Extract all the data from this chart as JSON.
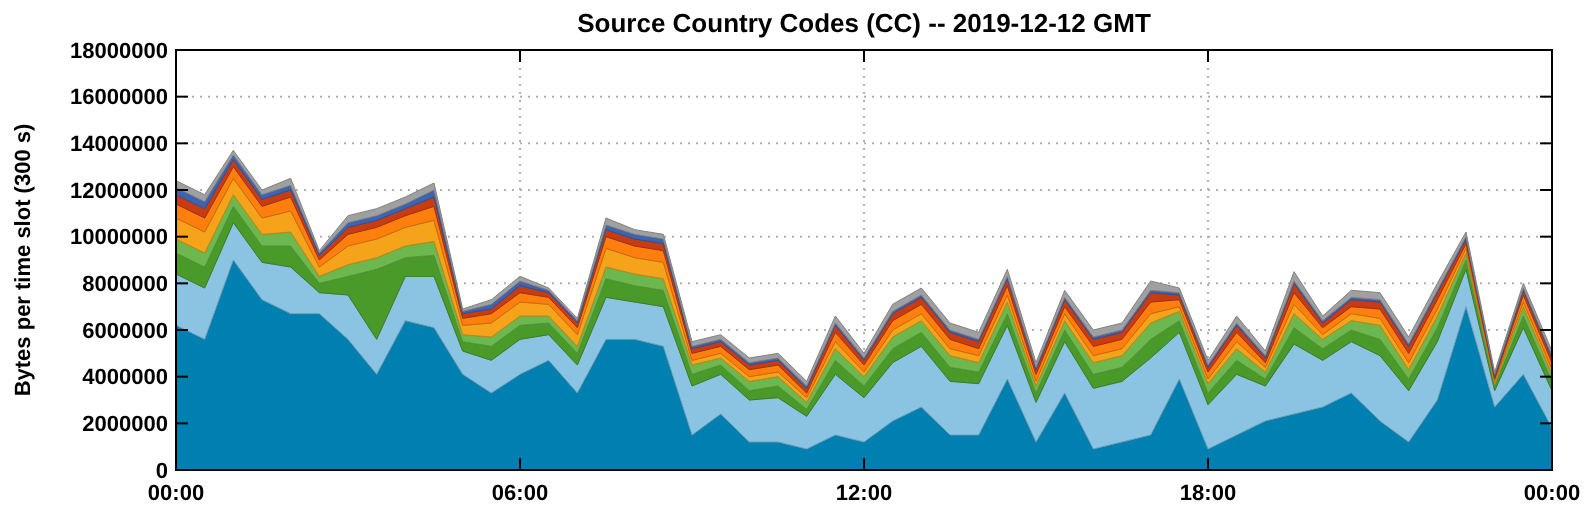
{
  "chart_data": {
    "type": "area",
    "stacked": true,
    "title": "Source Country Codes (CC) -- 2019-12-12 GMT",
    "ylabel": "Bytes per time slot (300 s)",
    "x": [
      0,
      0.5,
      1,
      1.5,
      2,
      2.5,
      3,
      3.5,
      4,
      4.5,
      5,
      5.5,
      6,
      6.5,
      7,
      7.5,
      8,
      8.5,
      9,
      9.5,
      10,
      10.5,
      11,
      11.5,
      12,
      12.5,
      13,
      13.5,
      14,
      14.5,
      15,
      15.5,
      16,
      16.5,
      17,
      17.5,
      18,
      18.5,
      19,
      19.5,
      20,
      20.5,
      21,
      21.5,
      22,
      22.5,
      23,
      23.5,
      24
    ],
    "xlim": [
      0,
      24
    ],
    "xticks": [
      {
        "value": 0,
        "label": "00:00"
      },
      {
        "value": 6,
        "label": "06:00"
      },
      {
        "value": 12,
        "label": "12:00"
      },
      {
        "value": 18,
        "label": "18:00"
      },
      {
        "value": 24,
        "label": "00:00"
      }
    ],
    "ylim": [
      0,
      18000000
    ],
    "yticks": [
      0,
      2000000,
      4000000,
      6000000,
      8000000,
      10000000,
      12000000,
      14000000,
      16000000,
      18000000
    ],
    "grid": true,
    "series": [
      {
        "color": "#0080b0",
        "values": [
          6200000.0,
          5600000.0,
          9000000.0,
          7300000.0,
          6700000.0,
          6700000.0,
          5600000.0,
          4100000.0,
          6400000.0,
          6100000.0,
          4100000.0,
          3300000.0,
          4100000.0,
          4700000.0,
          3300000.0,
          5600000.0,
          5600000.0,
          5300000.0,
          1500000.0,
          2400000.0,
          1200000.0,
          1200000.0,
          900000.0,
          1500000.0,
          1200000.0,
          2100000.0,
          2700000.0,
          1500000.0,
          1500000.0,
          3900000.0,
          1200000.0,
          3300000.0,
          900000.0,
          1200000.0,
          1500000.0,
          3900000.0,
          900000.0,
          1500000.0,
          2100000.0,
          2400000.0,
          2700000.0,
          3300000.0,
          2100000.0,
          1200000.0,
          3000000.0,
          7000000.0,
          2700000.0,
          4100000.0,
          1800000.0
        ]
      },
      {
        "color": "#8ac4e2",
        "values": [
          2200000.0,
          2200000.0,
          1600000.0,
          1600000.0,
          2000000.0,
          900000.0,
          1900000.0,
          1500000.0,
          1900000.0,
          2200000.0,
          1000000.0,
          1400000.0,
          1500000.0,
          1100000.0,
          1200000.0,
          1800000.0,
          1600000.0,
          1700000.0,
          2100000.0,
          1700000.0,
          1800000.0,
          1900000.0,
          1400000.0,
          2600000.0,
          1900000.0,
          2500000.0,
          2600000.0,
          2300000.0,
          2200000.0,
          2300000.0,
          1700000.0,
          2200000.0,
          2600000.0,
          2600000.0,
          3300000.0,
          2000000.0,
          1900000.0,
          2600000.0,
          1500000.0,
          3000000.0,
          2000000.0,
          2200000.0,
          2800000.0,
          2200000.0,
          2500000.0,
          1600000.0,
          700000.0,
          2000000.0,
          1600000.0
        ]
      },
      {
        "color": "#4a9a2a",
        "values": [
          900000.0,
          900000.0,
          700000.0,
          700000.0,
          900000.0,
          400000.0,
          800000.0,
          3000000.0,
          800000.0,
          900000.0,
          400000.0,
          600000.0,
          600000.0,
          500000.0,
          500000.0,
          800000.0,
          700000.0,
          700000.0,
          500000.0,
          400000.0,
          400000.0,
          500000.0,
          300000.0,
          600000.0,
          500000.0,
          600000.0,
          600000.0,
          600000.0,
          500000.0,
          500000.0,
          400000.0,
          500000.0,
          600000.0,
          600000.0,
          800000.0,
          500000.0,
          500000.0,
          600000.0,
          300000.0,
          700000.0,
          500000.0,
          500000.0,
          700000.0,
          500000.0,
          600000.0,
          400000.0,
          200000.0,
          500000.0,
          400000.0
        ]
      },
      {
        "color": "#6cb84e",
        "values": [
          600000.0,
          600000.0,
          500000.0,
          500000.0,
          600000.0,
          300000.0,
          500000.0,
          500000.0,
          500000.0,
          600000.0,
          300000.0,
          400000.0,
          400000.0,
          300000.0,
          300000.0,
          500000.0,
          500000.0,
          500000.0,
          400000.0,
          300000.0,
          400000.0,
          400000.0,
          300000.0,
          500000.0,
          400000.0,
          500000.0,
          500000.0,
          500000.0,
          400000.0,
          500000.0,
          300000.0,
          400000.0,
          500000.0,
          500000.0,
          700000.0,
          400000.0,
          400000.0,
          500000.0,
          300000.0,
          600000.0,
          400000.0,
          400000.0,
          600000.0,
          400000.0,
          500000.0,
          300000.0,
          100000.0,
          400000.0,
          300000.0
        ]
      },
      {
        "color": "#f5a31a",
        "values": [
          900000.0,
          900000.0,
          700000.0,
          700000.0,
          900000.0,
          400000.0,
          800000.0,
          800000.0,
          800000.0,
          900000.0,
          400000.0,
          600000.0,
          600000.0,
          500000.0,
          500000.0,
          800000.0,
          700000.0,
          700000.0,
          200000.0,
          200000.0,
          200000.0,
          200000.0,
          200000.0,
          300000.0,
          200000.0,
          300000.0,
          300000.0,
          300000.0,
          300000.0,
          300000.0,
          200000.0,
          300000.0,
          300000.0,
          300000.0,
          400000.0,
          200000.0,
          200000.0,
          300000.0,
          200000.0,
          400000.0,
          200000.0,
          300000.0,
          300000.0,
          300000.0,
          300000.0,
          200000.0,
          100000.0,
          200000.0,
          200000.0
        ]
      },
      {
        "color": "#ff7f0e",
        "values": [
          600000.0,
          600000.0,
          500000.0,
          500000.0,
          600000.0,
          300000.0,
          500000.0,
          500000.0,
          500000.0,
          600000.0,
          300000.0,
          400000.0,
          400000.0,
          300000.0,
          300000.0,
          500000.0,
          500000.0,
          500000.0,
          300000.0,
          300000.0,
          300000.0,
          300000.0,
          200000.0,
          400000.0,
          300000.0,
          400000.0,
          400000.0,
          400000.0,
          300000.0,
          400000.0,
          300000.0,
          300000.0,
          400000.0,
          400000.0,
          500000.0,
          300000.0,
          300000.0,
          400000.0,
          200000.0,
          500000.0,
          300000.0,
          300000.0,
          400000.0,
          400000.0,
          400000.0,
          200000.0,
          100000.0,
          300000.0,
          300000.0
        ]
      },
      {
        "color": "#c83c14",
        "values": [
          400000.0,
          400000.0,
          300000.0,
          300000.0,
          300000.0,
          200000.0,
          300000.0,
          300000.0,
          300000.0,
          400000.0,
          200000.0,
          200000.0,
          300000.0,
          200000.0,
          200000.0,
          300000.0,
          300000.0,
          300000.0,
          200000.0,
          200000.0,
          200000.0,
          200000.0,
          200000.0,
          300000.0,
          200000.0,
          300000.0,
          300000.0,
          300000.0,
          300000.0,
          300000.0,
          200000.0,
          300000.0,
          300000.0,
          300000.0,
          400000.0,
          200000.0,
          200000.0,
          300000.0,
          200000.0,
          400000.0,
          200000.0,
          300000.0,
          300000.0,
          300000.0,
          300000.0,
          200000.0,
          100000.0,
          200000.0,
          200000.0
        ]
      },
      {
        "color": "#3c64b4",
        "values": [
          300000.0,
          300000.0,
          200000.0,
          200000.0,
          200000.0,
          100000.0,
          200000.0,
          200000.0,
          200000.0,
          300000.0,
          100000.0,
          200000.0,
          200000.0,
          100000.0,
          100000.0,
          200000.0,
          200000.0,
          200000.0,
          100000.0,
          100000.0,
          100000.0,
          100000.0,
          100000.0,
          100000.0,
          100000.0,
          100000.0,
          100000.0,
          100000.0,
          100000.0,
          100000.0,
          100000.0,
          100000.0,
          100000.0,
          100000.0,
          100000.0,
          100000.0,
          100000.0,
          100000.0,
          100000.0,
          100000.0,
          100000.0,
          100000.0,
          100000.0,
          100000.0,
          100000.0,
          100000.0,
          100000.0,
          100000.0,
          100000.0
        ]
      },
      {
        "color": "#a0a0a0",
        "values": [
          300000.0,
          300000.0,
          200000.0,
          200000.0,
          300000.0,
          100000.0,
          300000.0,
          300000.0,
          300000.0,
          300000.0,
          100000.0,
          200000.0,
          200000.0,
          100000.0,
          100000.0,
          300000.0,
          200000.0,
          200000.0,
          200000.0,
          200000.0,
          200000.0,
          200000.0,
          200000.0,
          300000.0,
          200000.0,
          300000.0,
          300000.0,
          300000.0,
          300000.0,
          300000.0,
          200000.0,
          300000.0,
          300000.0,
          300000.0,
          400000.0,
          200000.0,
          200000.0,
          300000.0,
          200000.0,
          400000.0,
          200000.0,
          300000.0,
          300000.0,
          300000.0,
          300000.0,
          200000.0,
          100000.0,
          200000.0,
          200000.0
        ]
      }
    ]
  }
}
